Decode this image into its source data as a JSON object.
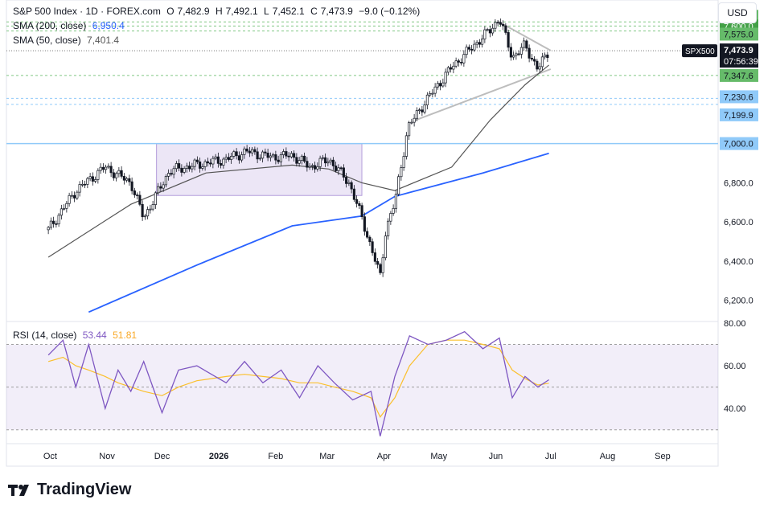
{
  "header": {
    "symbol": "S&P 500 Index · 1D · FOREX.com",
    "o_label": "O",
    "o_value": "7,482.9",
    "h_label": "H",
    "h_value": "7,492.1",
    "l_label": "L",
    "l_value": "7,452.1",
    "c_label": "C",
    "c_value": "7,473.9",
    "change": "−9.0 (−0.12%)",
    "currency": "USD"
  },
  "indicators": {
    "sma200_label": "SMA (200, close)",
    "sma200_value": "6,950.4",
    "sma50_label": "SMA (50, close)",
    "sma50_value": "7,401.4",
    "rsi_label": "RSI (14, close)",
    "rsi_value": "53.44",
    "rsi_ma_value": "51.81"
  },
  "branding": {
    "logo_text": "TradingView"
  },
  "colors": {
    "up": "#131722",
    "sma200": "#2962ff",
    "sma50": "#555555",
    "rsi": "#7e57c2",
    "rsi_ma": "#fbc02d",
    "green_label": "#66bb6a",
    "blue_label": "#90caf9",
    "range_box": "#b39ddb"
  },
  "chart_data": {
    "type": "candlestick",
    "title": "S&P 500 Index · 1D · FOREX.com",
    "xlabel": "",
    "ylabel": "",
    "x_ticks": [
      "Oct",
      "Nov",
      "Dec",
      "2026",
      "Feb",
      "Mar",
      "Apr",
      "May",
      "Jun",
      "Jul",
      "Aug",
      "Sep"
    ],
    "y_ticks": [
      "6,200.0",
      "6,400.0",
      "6,600.0",
      "6,800.0"
    ],
    "ylim": [
      6100,
      7700
    ],
    "grid": false,
    "price_levels": [
      {
        "label": "7,620.8",
        "value": 7620.8,
        "kind": "green"
      },
      {
        "label": "7,600.0",
        "value": 7600.0,
        "kind": "green-dark"
      },
      {
        "label": "7,575.0",
        "value": 7575.0,
        "kind": "green"
      },
      {
        "label": "7,347.6",
        "value": 7347.6,
        "kind": "green"
      },
      {
        "label": "7,230.6",
        "value": 7230.6,
        "kind": "blue"
      },
      {
        "label": "7,199.9",
        "value": 7199.9,
        "kind": "blue"
      },
      {
        "label": "7,000.0",
        "value": 7000.0,
        "kind": "blue"
      }
    ],
    "last_price": {
      "symbol": "SPX500",
      "price": "7,473.9",
      "countdown": "07:56:39",
      "value": 7473.9
    },
    "close_series": {
      "name": "S&P 500 Index",
      "dates": [
        "Sep 30",
        "Oct 15",
        "Oct 31",
        "Nov 14",
        "Nov 21",
        "Dec 5",
        "Dec 19",
        "Jan 5",
        "Jan 16",
        "Jan 30",
        "Feb 10",
        "Feb 20",
        "Mar 2",
        "Mar 13",
        "Mar 20",
        "Mar 30",
        "Apr 2",
        "Apr 7",
        "Apr 14",
        "Apr 24",
        "May 8",
        "May 20",
        "May 29",
        "Jun 3",
        "Jun 10",
        "Jun 17",
        "Jun 24",
        "Jun 30"
      ],
      "values": [
        6560,
        6760,
        6880,
        6800,
        6620,
        6860,
        6890,
        6920,
        6960,
        6930,
        6940,
        6880,
        6920,
        6800,
        6620,
        6320,
        6560,
        6700,
        7080,
        7220,
        7390,
        7500,
        7580,
        7640,
        7440,
        7500,
        7380,
        7474
      ]
    },
    "sma200": {
      "name": "SMA (200, close)",
      "dates": [
        "Oct 22",
        "Dec 20",
        "Feb 10",
        "Mar 20",
        "Apr 7",
        "May 25",
        "Jun 30"
      ],
      "values": [
        6140,
        6380,
        6580,
        6630,
        6730,
        6850,
        6950
      ]
    },
    "sma50": {
      "name": "SMA (50, close)",
      "dates": [
        "Sep 30",
        "Nov 14",
        "Dec 25",
        "Feb 10",
        "Mar 2",
        "Mar 20",
        "Apr 7",
        "May 8",
        "May 29",
        "Jun 17",
        "Jun 30"
      ],
      "values": [
        6420,
        6690,
        6850,
        6890,
        6870,
        6800,
        6760,
        6880,
        7120,
        7300,
        7401
      ]
    },
    "consolidation_box": {
      "start": "Nov 28",
      "end": "Mar 20",
      "top": 7000,
      "bottom": 6735
    },
    "trendlines": [
      {
        "from_date": "Apr 17",
        "from": 7115,
        "to_date": "Jul 1",
        "to": 7380
      },
      {
        "from_date": "Jun 2",
        "from": 7625,
        "to_date": "Jul 1",
        "to": 7475
      }
    ],
    "rsi": {
      "label": "RSI (14, close)",
      "y_ticks": [
        "80.00",
        "60.00",
        "40.00"
      ],
      "ylim": [
        25,
        80
      ],
      "band": [
        30,
        70
      ],
      "dates": [
        "Sep 30",
        "Oct 8",
        "Oct 15",
        "Oct 22",
        "Oct 31",
        "Nov 7",
        "Nov 14",
        "Nov 21",
        "Dec 1",
        "Dec 10",
        "Dec 20",
        "Jan 5",
        "Jan 15",
        "Jan 25",
        "Feb 4",
        "Feb 14",
        "Feb 24",
        "Mar 5",
        "Mar 15",
        "Mar 25",
        "Mar 30",
        "Apr 7",
        "Apr 15",
        "Apr 25",
        "May 5",
        "May 15",
        "May 25",
        "Jun 3",
        "Jun 10",
        "Jun 17",
        "Jun 24",
        "Jun 30"
      ],
      "values": [
        65,
        72,
        50,
        70,
        40,
        58,
        48,
        62,
        38,
        58,
        60,
        52,
        62,
        52,
        58,
        45,
        60,
        52,
        44,
        48,
        27,
        55,
        74,
        70,
        72,
        76,
        68,
        73,
        45,
        55,
        50,
        53.44
      ],
      "ma_values": [
        62,
        64,
        60,
        58,
        55,
        52,
        50,
        48,
        46,
        50,
        53,
        55,
        56,
        55,
        54,
        52,
        52,
        50,
        48,
        45,
        36,
        45,
        60,
        70,
        72,
        72,
        70,
        68,
        58,
        54,
        51,
        51.81
      ]
    }
  }
}
